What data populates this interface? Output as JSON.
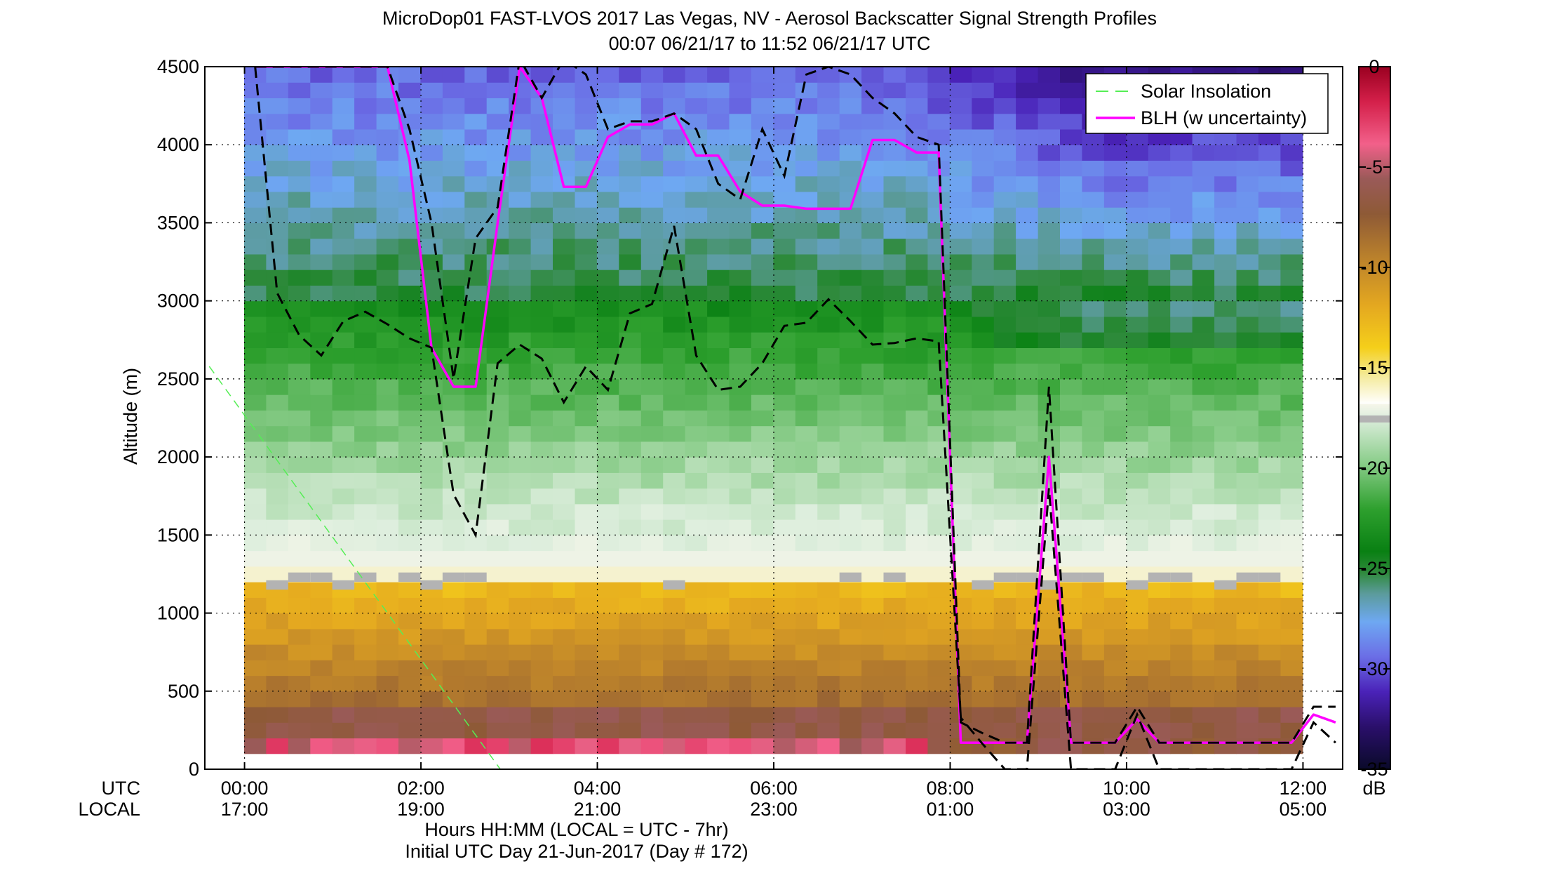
{
  "chart_data": {
    "type": "heatmap",
    "title": "MicroDop01 FAST-LVOS 2017 Las Vegas, NV - Aerosol Backscatter Signal Strength Profiles",
    "subtitle": "00:07 06/21/17 to 11:52 06/21/17  UTC",
    "xlabel": "Hours HH:MM  (LOCAL = UTC - 7hr)",
    "xlabel2": "Initial UTC Day 21-Jun-2017 (Day # 172)",
    "ylabel": "Altitude (m)",
    "xlim_hours": [
      -0.45,
      12.45
    ],
    "ylim": [
      0,
      4500
    ],
    "grid": true,
    "legend_position": "top-right",
    "x_ticks": [
      0,
      2,
      4,
      6,
      8,
      10,
      12
    ],
    "x_row_labels": {
      "utc": "UTC",
      "local": "LOCAL"
    },
    "x_tick_labels_utc": [
      "00:00",
      "02:00",
      "04:00",
      "06:00",
      "08:00",
      "10:00",
      "12:00"
    ],
    "x_tick_labels_local": [
      "17:00",
      "19:00",
      "21:00",
      "23:00",
      "01:00",
      "03:00",
      "05:00"
    ],
    "y_ticks": [
      0,
      500,
      1000,
      1500,
      2000,
      2500,
      3000,
      3500,
      4000,
      4500
    ],
    "y_tick_labels": [
      "0",
      "500",
      "1000",
      "1500",
      "2000",
      "2500",
      "3000",
      "3500",
      "4000",
      "4500"
    ],
    "colorbar": {
      "label": "dB",
      "range": [
        -35,
        0
      ],
      "ticks": [
        0,
        -5,
        -10,
        -15,
        -20,
        -25,
        -30,
        -35
      ],
      "tick_labels": [
        "0",
        "-5",
        "-10",
        "-15",
        "-20",
        "-25",
        "-30",
        "-35"
      ]
    },
    "legend": {
      "solar": "Solar Insolation",
      "blh": "BLH (w uncertainty)"
    },
    "colors": {
      "blh": "#ff00ff",
      "uncertainty": "#000000",
      "solar": "#55ee55",
      "gray_band": "#b3b3b3"
    },
    "time_range_hours": [
      0.12,
      11.87
    ],
    "alt_range": [
      100,
      4500
    ],
    "series": [
      {
        "name": "BLH (w uncertainty)",
        "x": [
          0.12,
          0.37,
          0.62,
          0.87,
          1.12,
          1.37,
          1.62,
          1.87,
          2.12,
          2.37,
          2.62,
          2.87,
          3.12,
          3.37,
          3.62,
          3.87,
          4.12,
          4.37,
          4.62,
          4.87,
          5.12,
          5.37,
          5.62,
          5.87,
          6.12,
          6.37,
          6.62,
          6.87,
          7.12,
          7.37,
          7.62,
          7.87,
          8.12,
          8.37,
          8.62,
          8.87,
          9.12,
          9.37,
          9.62,
          9.87,
          10.12,
          10.37,
          10.62,
          10.87,
          11.12,
          11.37,
          11.62,
          11.87,
          12.12,
          12.37
        ],
        "y": [
          4500,
          4500,
          4500,
          4500,
          4500,
          4500,
          4500,
          3900,
          2700,
          2450,
          2450,
          3500,
          4500,
          4300,
          3730,
          3730,
          4050,
          4130,
          4130,
          4200,
          3930,
          3930,
          3700,
          3610,
          3610,
          3590,
          3590,
          3590,
          4030,
          4030,
          3950,
          3950,
          170,
          170,
          170,
          170,
          2000,
          170,
          170,
          170,
          320,
          170,
          170,
          170,
          170,
          170,
          170,
          170,
          350,
          300
        ]
      },
      {
        "name": "upper uncertainty",
        "x": [
          0.12,
          0.37,
          0.62,
          0.87,
          1.12,
          1.37,
          1.62,
          1.87,
          2.12,
          2.37,
          2.62,
          2.87,
          3.12,
          3.37,
          3.62,
          3.87,
          4.12,
          4.37,
          4.62,
          4.87,
          5.12,
          5.37,
          5.62,
          5.87,
          6.12,
          6.37,
          6.62,
          6.87,
          7.12,
          7.37,
          7.62,
          7.87,
          8.12,
          8.37,
          8.62,
          8.87,
          9.12,
          9.37,
          9.62,
          9.87,
          10.12,
          10.37,
          10.62,
          10.87,
          11.12,
          11.37,
          11.62,
          11.87,
          12.12,
          12.37
        ],
        "y": [
          4500,
          4500,
          4500,
          4500,
          4500,
          4500,
          4500,
          4100,
          3500,
          2500,
          3400,
          3600,
          4550,
          4300,
          4550,
          4450,
          4100,
          4150,
          4150,
          4200,
          4100,
          3750,
          3650,
          4100,
          3800,
          4450,
          4500,
          4450,
          4300,
          4200,
          4050,
          4000,
          300,
          230,
          170,
          170,
          2450,
          170,
          170,
          170,
          400,
          170,
          170,
          170,
          170,
          170,
          170,
          170,
          400,
          400
        ]
      },
      {
        "name": "lower uncertainty",
        "x": [
          0.12,
          0.37,
          0.62,
          0.87,
          1.12,
          1.37,
          1.62,
          1.87,
          2.12,
          2.37,
          2.62,
          2.87,
          3.12,
          3.37,
          3.62,
          3.87,
          4.12,
          4.37,
          4.62,
          4.87,
          5.12,
          5.37,
          5.62,
          5.87,
          6.12,
          6.37,
          6.62,
          6.87,
          7.12,
          7.37,
          7.62,
          7.87,
          8.12,
          8.37,
          8.62,
          8.87,
          9.12,
          9.37,
          9.62,
          9.87,
          10.12,
          10.37,
          10.62,
          10.87,
          11.12,
          11.37,
          11.62,
          11.87,
          12.12,
          12.37
        ],
        "y": [
          4500,
          3050,
          2780,
          2650,
          2870,
          2930,
          2850,
          2760,
          2700,
          1760,
          1500,
          2600,
          2720,
          2630,
          2350,
          2580,
          2430,
          2920,
          2980,
          3480,
          2650,
          2430,
          2450,
          2600,
          2840,
          2860,
          3010,
          2870,
          2720,
          2730,
          2760,
          2740,
          330,
          160,
          0,
          0,
          1800,
          0,
          0,
          0,
          350,
          0,
          0,
          0,
          0,
          0,
          0,
          0,
          300,
          170
        ]
      },
      {
        "name": "Solar Insolation",
        "x": [
          -0.4,
          2.9
        ],
        "y": [
          2580,
          0
        ]
      }
    ],
    "heatmap": {
      "cell_width_hours": 0.25,
      "cell_height_m": 100
    }
  }
}
